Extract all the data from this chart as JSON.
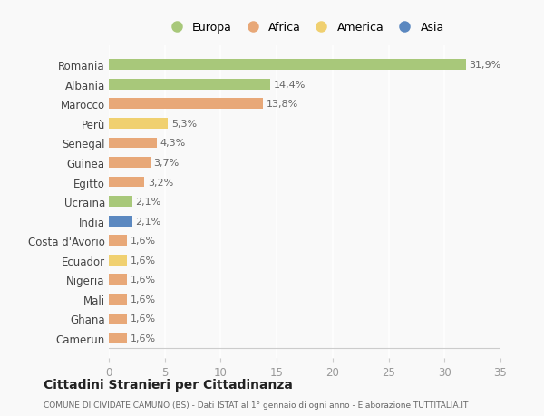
{
  "categories": [
    "Romania",
    "Albania",
    "Marocco",
    "Perù",
    "Senegal",
    "Guinea",
    "Egitto",
    "Ucraina",
    "India",
    "Costa d'Avorio",
    "Ecuador",
    "Nigeria",
    "Mali",
    "Ghana",
    "Camerun"
  ],
  "values": [
    31.9,
    14.4,
    13.8,
    5.3,
    4.3,
    3.7,
    3.2,
    2.1,
    2.1,
    1.6,
    1.6,
    1.6,
    1.6,
    1.6,
    1.6
  ],
  "labels": [
    "31,9%",
    "14,4%",
    "13,8%",
    "5,3%",
    "4,3%",
    "3,7%",
    "3,2%",
    "2,1%",
    "2,1%",
    "1,6%",
    "1,6%",
    "1,6%",
    "1,6%",
    "1,6%",
    "1,6%"
  ],
  "continents": [
    "Europa",
    "Europa",
    "Africa",
    "America",
    "Africa",
    "Africa",
    "Africa",
    "Europa",
    "Asia",
    "Africa",
    "America",
    "Africa",
    "Africa",
    "Africa",
    "Africa"
  ],
  "colors": {
    "Europa": "#a8c87a",
    "Africa": "#e8a878",
    "America": "#f0d070",
    "Asia": "#5b88c0"
  },
  "title": "Cittadini Stranieri per Cittadinanza",
  "subtitle": "COMUNE DI CIVIDATE CAMUNO (BS) - Dati ISTAT al 1° gennaio di ogni anno - Elaborazione TUTTITALIA.IT",
  "xlim": [
    0,
    35
  ],
  "xticks": [
    0,
    5,
    10,
    15,
    20,
    25,
    30,
    35
  ],
  "background_color": "#f9f9f9",
  "plot_background": "#f9f9f9",
  "grid_color": "#ffffff",
  "bar_height": 0.55,
  "label_fontsize": 8,
  "ytick_fontsize": 8.5,
  "xtick_fontsize": 8.5
}
